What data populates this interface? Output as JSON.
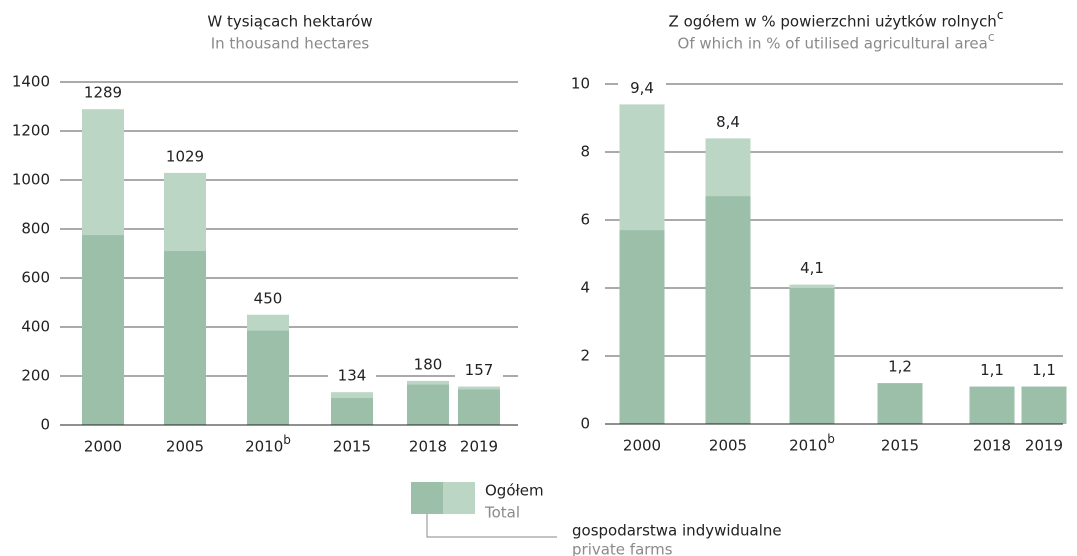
{
  "chart_data": [
    {
      "type": "bar",
      "title": "W tysiącach hektarów",
      "subtitle": "In thousand hectares",
      "categories": [
        "2000",
        "2005",
        "2010",
        "2015",
        "2018",
        "2019"
      ],
      "category_notes": [
        null,
        null,
        "b",
        null,
        null,
        null
      ],
      "series": [
        {
          "name": "Ogółem",
          "color": "#bcd6c6",
          "values": [
            1289,
            1029,
            450,
            134,
            180,
            157
          ]
        },
        {
          "name": "gospodarstwa indywidualne",
          "color": "#9bbfa8",
          "values": [
            775,
            710,
            385,
            110,
            165,
            145
          ]
        }
      ],
      "ylim": [
        0,
        1400
      ],
      "yticks": [
        0,
        200,
        400,
        600,
        800,
        1000,
        1200,
        1400
      ],
      "grid": true
    },
    {
      "type": "bar",
      "title": "Z ogółem w % powierzchni użytków rolnych",
      "title_note": "c",
      "subtitle": "Of which in % of utilised agricultural area",
      "subtitle_note": "c",
      "categories": [
        "2000",
        "2005",
        "2010",
        "2015",
        "2018",
        "2019"
      ],
      "category_notes": [
        null,
        null,
        "b",
        null,
        null,
        null
      ],
      "series": [
        {
          "name": "Ogółem",
          "color": "#bcd6c6",
          "values": [
            9.4,
            8.4,
            4.1,
            1.2,
            1.1,
            1.1
          ],
          "value_labels": [
            "9,4",
            "8,4",
            "4,1",
            "1,2",
            "1,1",
            "1,1"
          ]
        },
        {
          "name": "gospodarstwa indywidualne",
          "color": "#9bbfa8",
          "values": [
            5.7,
            6.7,
            4.0,
            1.2,
            1.1,
            1.1
          ]
        }
      ],
      "ylim": [
        0,
        10
      ],
      "yticks": [
        0,
        2,
        4,
        6,
        8,
        10
      ],
      "grid": true
    }
  ],
  "legend": {
    "total_pl": "Ogółem",
    "total_en": "Total",
    "private_pl": "gospodarstwa indywidualne",
    "private_en": "private farms"
  }
}
